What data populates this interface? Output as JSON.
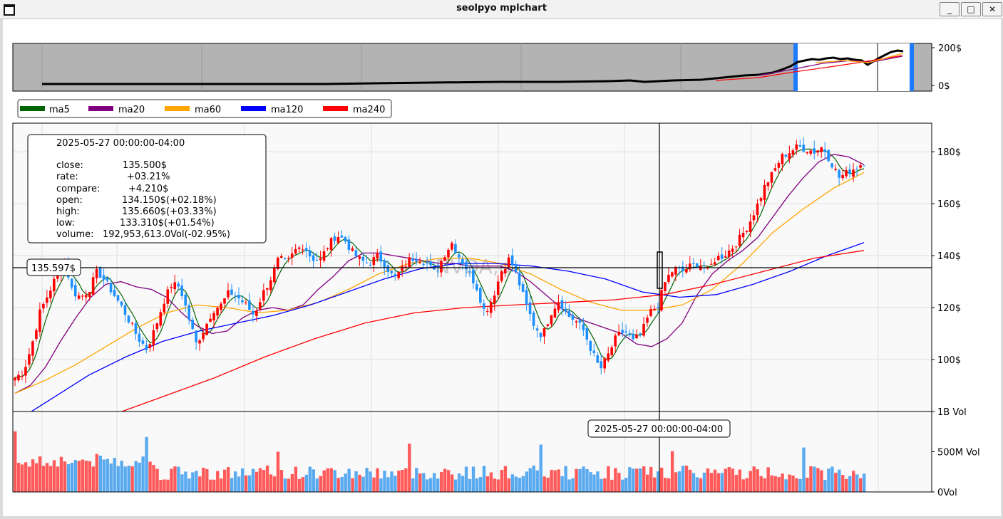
{
  "window": {
    "title": "seolpyo mplchart",
    "minimize_label": "_",
    "maximize_label": "□",
    "close_label": "✕"
  },
  "overview": {
    "y_ticks": [
      "200$",
      "0$"
    ]
  },
  "legend": {
    "items": [
      {
        "label": "ma5",
        "color": "#006400"
      },
      {
        "label": "ma20",
        "color": "#800080"
      },
      {
        "label": "ma60",
        "color": "#FFA500"
      },
      {
        "label": "ma120",
        "color": "#0000FF"
      },
      {
        "label": "ma240",
        "color": "#FF0000"
      }
    ]
  },
  "info_box": {
    "datetime": "2025-05-27 00:00:00-04:00",
    "close_label": "close:",
    "close_value": "135.500$",
    "rate_label": "rate:",
    "rate_value": "+03.21%",
    "compare_label": "compare:",
    "compare_value": "+4.210$",
    "open_label": "open:",
    "open_value": "134.150$(+02.18%)",
    "high_label": "high:",
    "high_value": "135.660$(+03.33%)",
    "low_label": "low:",
    "low_value": "133.310$(+01.54%)",
    "volume_label": "volume:",
    "volume_value": "192,953,613.0Vol(-02.95%)"
  },
  "watermark": "NVDA,d",
  "crosshair": {
    "price_label": "135.597$",
    "date_label": "2025-05-27 00:00:00-04:00"
  },
  "colors": {
    "up": "#FF0000",
    "down": "#1E90FF",
    "volume_up": "#FF5A5A",
    "volume_down": "#5AAAF0"
  },
  "chart_data": {
    "type": "candlestick",
    "price_ticks": [
      "180$",
      "160$",
      "140$",
      "120$",
      "100$"
    ],
    "price_tick_values": [
      180,
      160,
      140,
      120,
      100
    ],
    "ylim": [
      80,
      191
    ],
    "volume_ticks": [
      "1B Vol",
      "500M Vol",
      "0Vol"
    ],
    "volume_tick_values": [
      1000000000,
      500000000,
      0
    ],
    "volume_ylim": [
      0,
      1000000000
    ],
    "close_path": [
      93,
      95,
      105,
      118,
      125,
      132,
      138,
      126,
      124,
      127,
      134,
      130,
      125,
      120,
      114,
      108,
      104,
      112,
      122,
      129,
      128,
      117,
      106,
      112,
      119,
      121,
      126,
      124,
      121,
      117,
      125,
      131,
      139,
      137,
      142,
      144,
      139,
      138,
      144,
      148,
      146,
      141,
      138,
      137,
      140,
      136,
      131,
      135,
      139,
      139,
      137,
      133,
      140,
      145,
      139,
      134,
      128,
      118,
      124,
      134,
      139,
      131,
      121,
      113,
      109,
      118,
      123,
      117,
      115,
      111,
      103,
      96,
      102,
      109,
      111,
      107,
      110,
      118,
      121,
      131,
      135,
      134,
      136,
      137,
      134,
      139,
      140,
      143,
      147,
      152,
      159,
      167,
      172,
      178,
      180,
      182,
      181,
      180,
      182,
      176,
      170,
      172,
      174,
      176
    ],
    "ma_series": [
      {
        "name": "ma20",
        "values": [
          87,
          90,
          97,
          107,
          116,
          124,
          129,
          130,
          128,
          127,
          124,
          118,
          113,
          110,
          111,
          116,
          119,
          120,
          119,
          121,
          127,
          132,
          138,
          141,
          141,
          140,
          139,
          138,
          137,
          137,
          136,
          136,
          136,
          134,
          130,
          125,
          120,
          116,
          114,
          112,
          110,
          106,
          105,
          108,
          114,
          125,
          133,
          138,
          142,
          147,
          155,
          163,
          170,
          176,
          179,
          178,
          175
        ]
      },
      {
        "name": "ma60",
        "values": [
          87,
          92,
          98,
          105,
          112,
          118,
          121,
          120,
          118,
          119,
          122,
          127,
          133,
          137,
          139,
          139,
          137,
          133,
          127,
          122,
          119,
          119,
          121,
          127,
          137,
          149,
          158,
          166,
          172
        ]
      },
      {
        "name": "ma120",
        "values": [
          76,
          85,
          94,
          101,
          107,
          111,
          114,
          117,
          121,
          126,
          131,
          135,
          137,
          137,
          136,
          134,
          131,
          126,
          124,
          125,
          129,
          134,
          140,
          145
        ]
      },
      {
        "name": "ma240",
        "values": [
          69,
          73,
          79,
          86,
          93,
          101,
          108,
          114,
          118,
          120,
          121,
          122,
          123,
          125,
          129,
          134,
          139,
          142
        ]
      }
    ]
  }
}
